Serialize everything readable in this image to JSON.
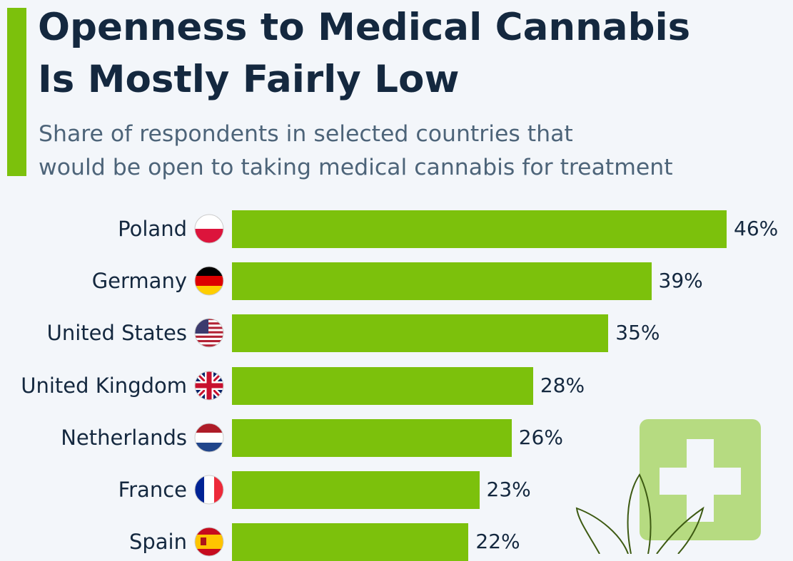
{
  "header": {
    "title_line1": "Openness to Medical Cannabis",
    "title_line2": "Is Mostly Fairly Low",
    "subtitle_line1": "Share of respondents in selected countries that",
    "subtitle_line2": "would be open to taking medical cannabis for treatment"
  },
  "colors": {
    "bar": "#7cc10c",
    "title": "#14283f",
    "subtitle": "#4d6479",
    "icon_bg": "#b6db81"
  },
  "chart_data": {
    "type": "bar",
    "orientation": "horizontal",
    "title": "Openness to Medical Cannabis Is Mostly Fairly Low",
    "subtitle": "Share of respondents in selected countries that would be open to taking medical cannabis for treatment",
    "categories": [
      "Poland",
      "Germany",
      "United States",
      "United Kingdom",
      "Netherlands",
      "France",
      "Spain"
    ],
    "values": [
      46,
      39,
      35,
      28,
      26,
      23,
      22
    ],
    "value_labels": [
      "46%",
      "39%",
      "35%",
      "28%",
      "26%",
      "23%",
      "22%"
    ],
    "flags": [
      "poland-flag-icon",
      "germany-flag-icon",
      "us-flag-icon",
      "uk-flag-icon",
      "netherlands-flag-icon",
      "france-flag-icon",
      "spain-flag-icon"
    ],
    "unit": "%",
    "xlabel": "",
    "ylabel": "",
    "xlim": [
      0,
      46
    ],
    "grid": false
  }
}
